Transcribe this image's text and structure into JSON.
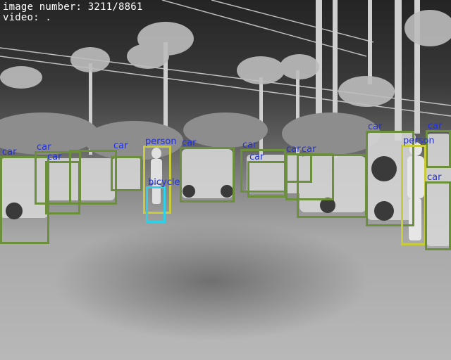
{
  "hud": {
    "image_number_label": "image number: 3211/8861",
    "video_label": "video: ."
  },
  "detections": [
    {
      "label": "car",
      "cls": "car"
    },
    {
      "label": "car",
      "cls": "car"
    },
    {
      "label": "car",
      "cls": "car"
    },
    {
      "label": "car",
      "cls": "car"
    },
    {
      "label": "person",
      "cls": "person"
    },
    {
      "label": "bicycle",
      "cls": "bicycle"
    },
    {
      "label": "car",
      "cls": "car"
    },
    {
      "label": "car",
      "cls": "car"
    },
    {
      "label": "car",
      "cls": "car"
    },
    {
      "label": "car",
      "cls": "car"
    },
    {
      "label": "car",
      "cls": "car"
    },
    {
      "label": "car",
      "cls": "car"
    },
    {
      "label": "car",
      "cls": "car"
    },
    {
      "label": "person",
      "cls": "person"
    },
    {
      "label": "car",
      "cls": "car"
    },
    {
      "label": "car",
      "cls": "car"
    }
  ],
  "colors": {
    "car": "#6b8f3a",
    "person": "#c8cc3a",
    "bicycle": "#2fd0e6",
    "label_text": "#2030e0",
    "hud_text": "#ffffff"
  }
}
